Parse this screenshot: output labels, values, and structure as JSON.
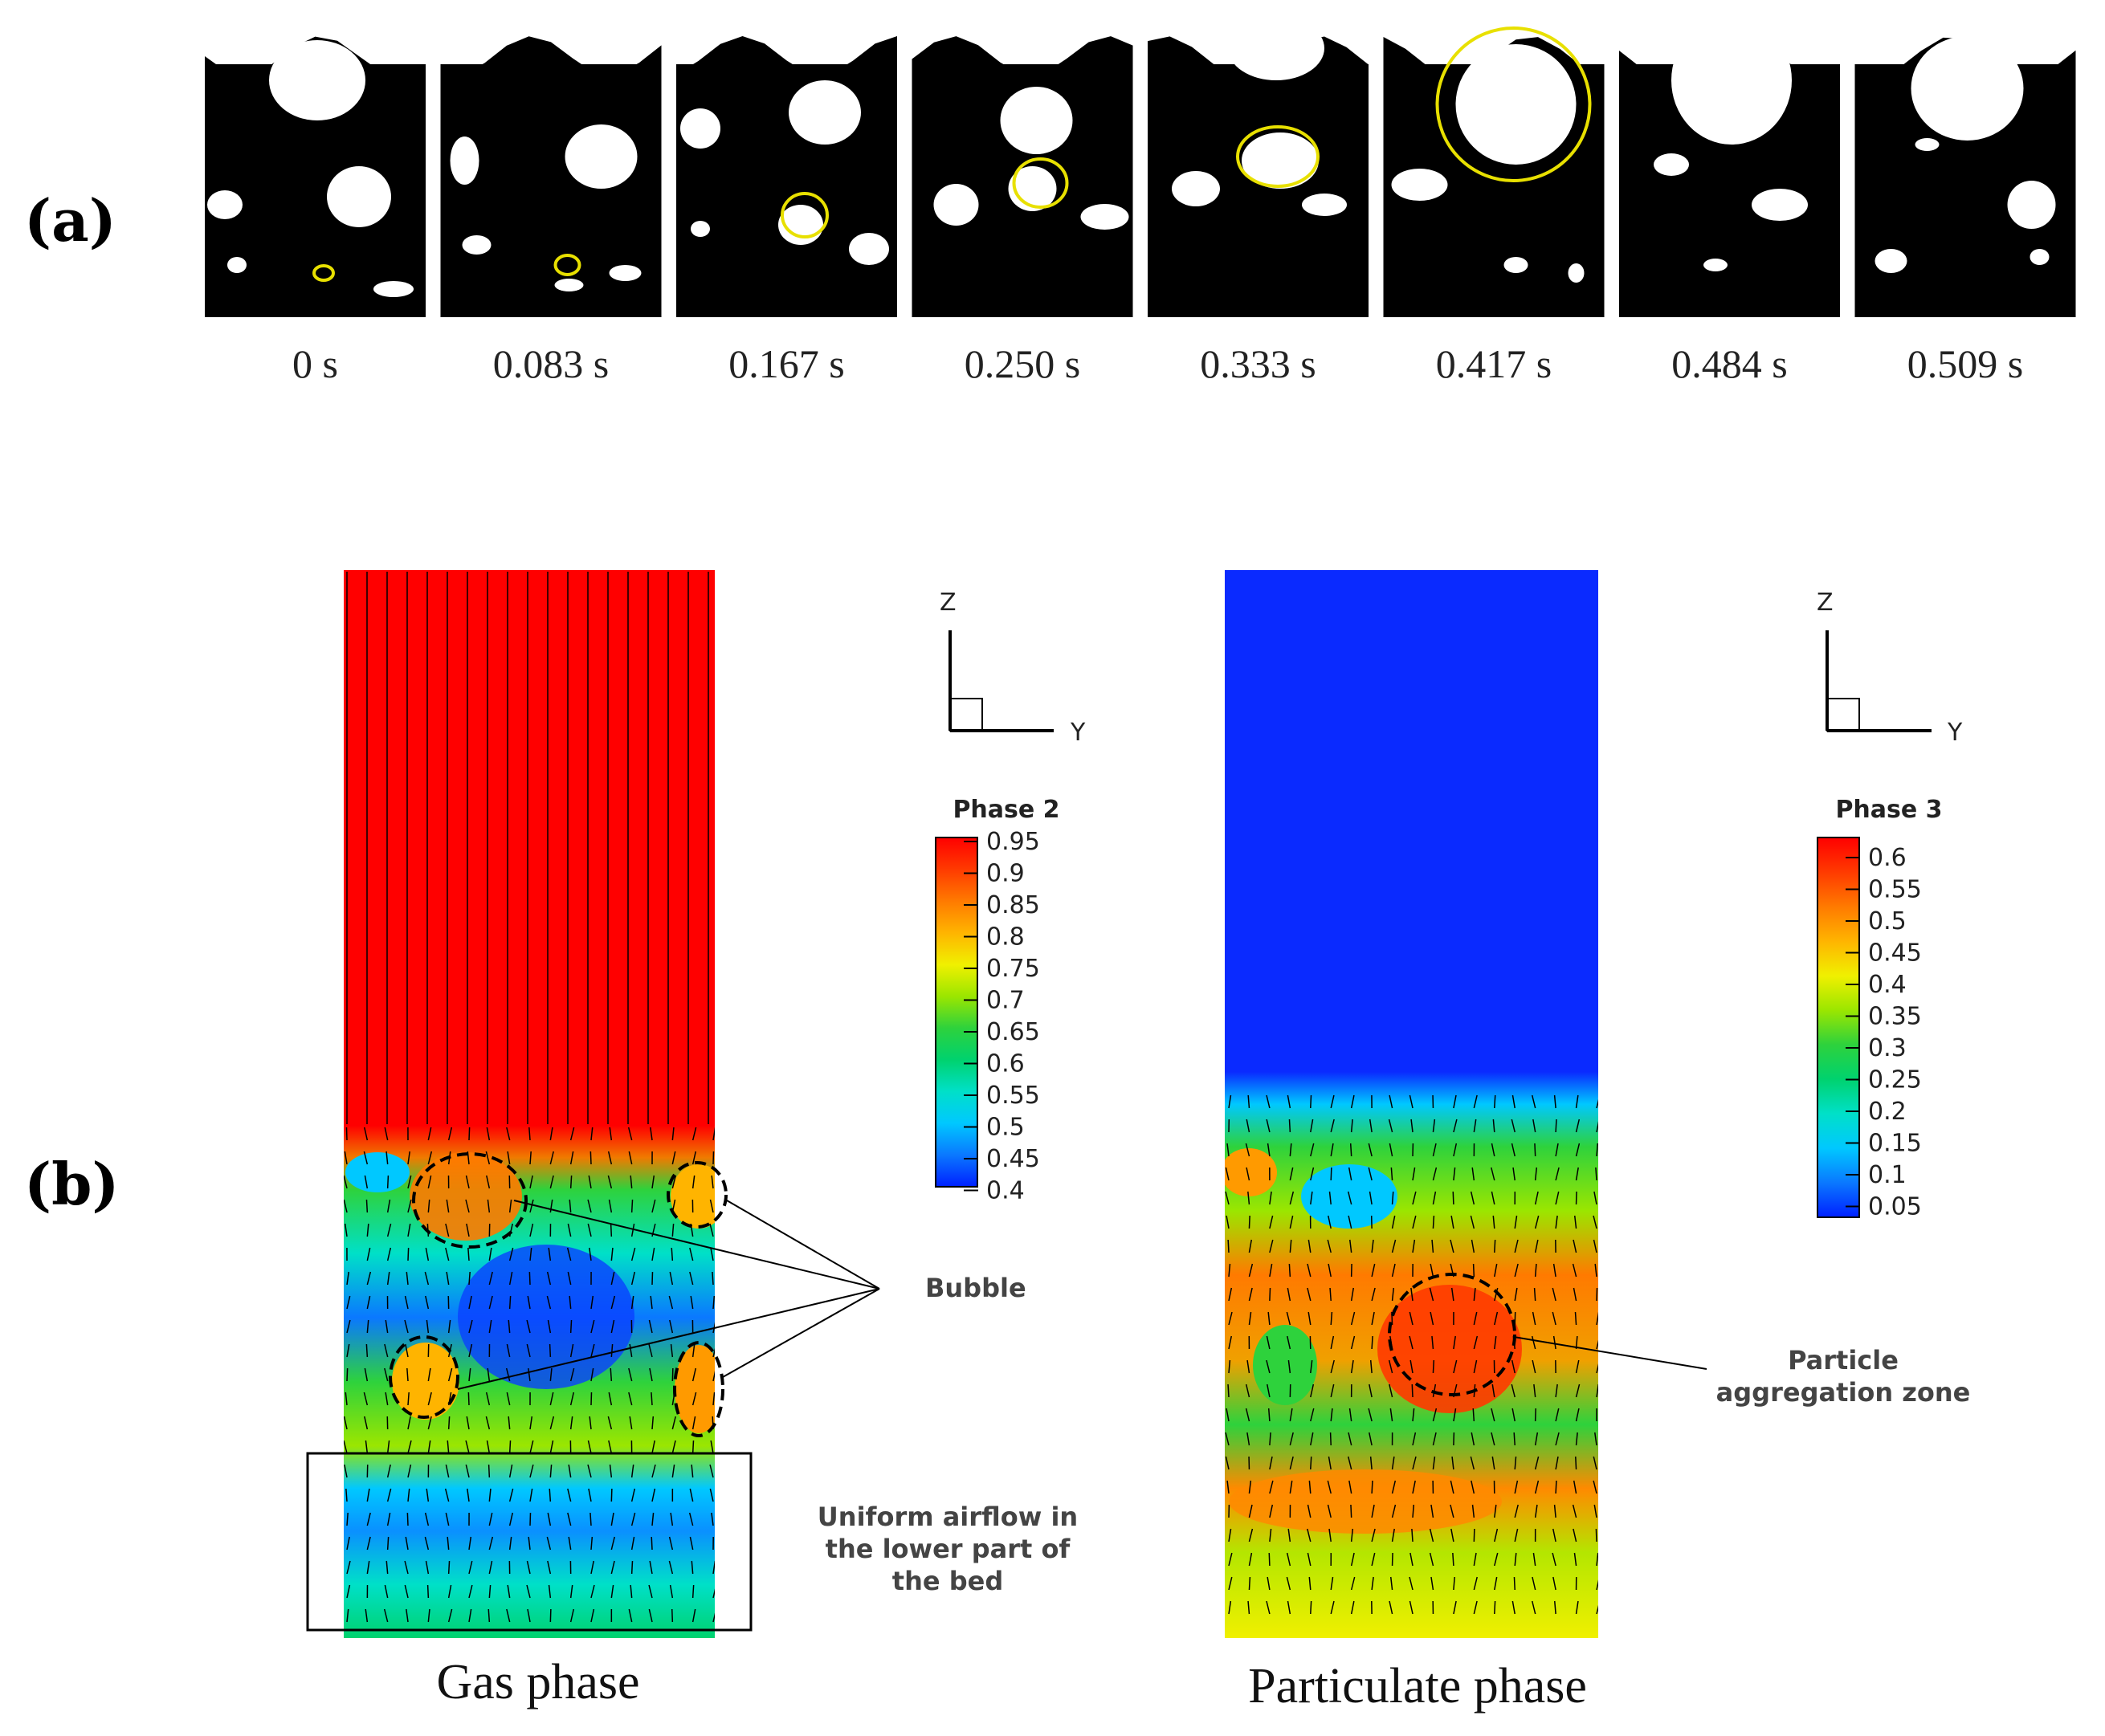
{
  "panel_a": {
    "label": "(a)",
    "frames": [
      {
        "time": "0 s"
      },
      {
        "time": "0.083 s"
      },
      {
        "time": "0.167 s"
      },
      {
        "time": "0.250 s"
      },
      {
        "time": "0.333 s"
      },
      {
        "time": "0.417 s"
      },
      {
        "time": "0.484 s"
      },
      {
        "time": "0.509 s"
      }
    ],
    "highlight_color": "#e8e000"
  },
  "panel_b": {
    "label": "(b)",
    "gas": {
      "caption": "Gas phase",
      "legend_title": "Phase 2",
      "legend_ticks": [
        "0.95",
        "0.9",
        "0.85",
        "0.8",
        "0.75",
        "0.7",
        "0.65",
        "0.6",
        "0.55",
        "0.5",
        "0.45",
        "0.4"
      ],
      "axis_z": "Z",
      "axis_y": "Y",
      "annotation_bubble": "Bubble",
      "annotation_uniform": [
        "Uniform airflow in",
        "the lower part of",
        "the bed"
      ]
    },
    "particle": {
      "caption": "Particulate phase",
      "legend_title": "Phase 3",
      "legend_ticks": [
        "0.6",
        "0.55",
        "0.5",
        "0.45",
        "0.4",
        "0.35",
        "0.3",
        "0.25",
        "0.2",
        "0.15",
        "0.1",
        "0.05"
      ],
      "axis_z": "Z",
      "axis_y": "Y",
      "annotation_zone": [
        "Particle",
        "aggregation zone"
      ]
    },
    "colormap": [
      "#ff0000",
      "#ff3a00",
      "#ff7a00",
      "#ffb400",
      "#f0f000",
      "#9be600",
      "#2ed23c",
      "#00d26e",
      "#00e0c8",
      "#00c8ff",
      "#0a78ff",
      "#0020ff"
    ]
  }
}
